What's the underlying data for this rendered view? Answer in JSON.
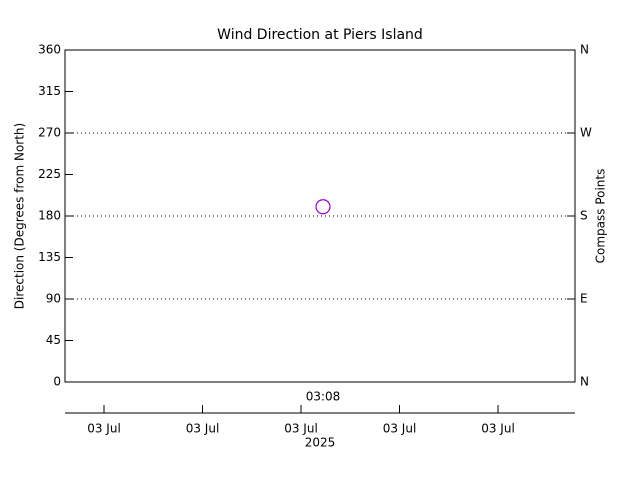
{
  "chart_data": {
    "type": "scatter",
    "title": "Wind Direction at Piers Island",
    "y_label": "Direction (Degrees from North)",
    "y2_label": "Compass Points",
    "categories": [
      "03:08"
    ],
    "values": [
      190
    ],
    "color": "#9900cc",
    "ylim": [
      0,
      360
    ],
    "yticks": [
      0,
      45,
      90,
      135,
      180,
      225,
      270,
      315,
      360
    ],
    "y2lim": [
      0,
      360
    ],
    "y2ticks": [
      {
        "value": 0,
        "label": "N"
      },
      {
        "value": 90,
        "label": "E"
      },
      {
        "value": 180,
        "label": "S"
      },
      {
        "value": 270,
        "label": "W"
      },
      {
        "value": 360,
        "label": "N"
      }
    ],
    "grid_values": [
      90,
      180,
      270
    ],
    "date_ticks": [
      "03 Jul",
      "03 Jul",
      "03 Jul",
      "03 Jul",
      "03 Jul"
    ],
    "date_year": "2025"
  }
}
